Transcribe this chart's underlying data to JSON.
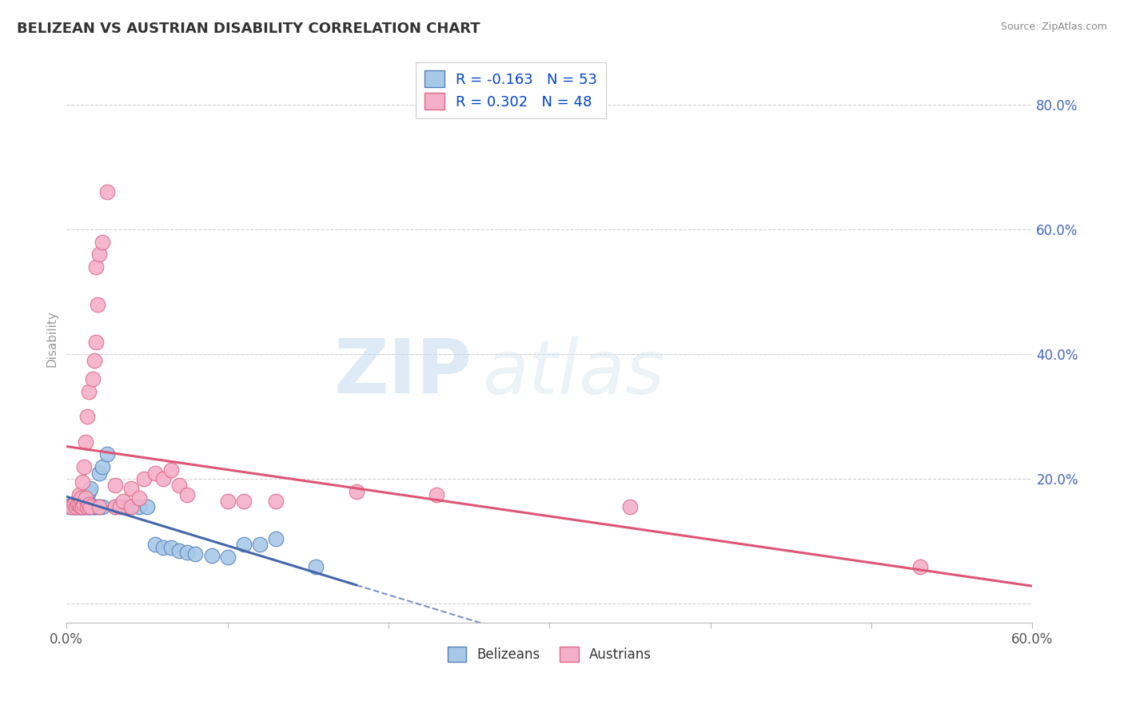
{
  "title": "BELIZEAN VS AUSTRIAN DISABILITY CORRELATION CHART",
  "source": "Source: ZipAtlas.com",
  "ylabel": "Disability",
  "watermark_zip": "ZIP",
  "watermark_atlas": "atlas",
  "blue_R": -0.163,
  "blue_N": 53,
  "pink_R": 0.302,
  "pink_N": 48,
  "blue_color": "#a8c8e8",
  "pink_color": "#f4b0c8",
  "blue_edge_color": "#5580bb",
  "pink_edge_color": "#e06888",
  "blue_line_color": "#4466aa",
  "pink_line_color": "#dd5577",
  "legend_label_blue": "Belizeans",
  "legend_label_pink": "Austrians",
  "blue_scatter": [
    [
      0.002,
      0.155
    ],
    [
      0.003,
      0.158
    ],
    [
      0.004,
      0.155
    ],
    [
      0.004,
      0.16
    ],
    [
      0.005,
      0.155
    ],
    [
      0.005,
      0.16
    ],
    [
      0.006,
      0.155
    ],
    [
      0.006,
      0.162
    ],
    [
      0.007,
      0.155
    ],
    [
      0.007,
      0.16
    ],
    [
      0.008,
      0.155
    ],
    [
      0.008,
      0.16
    ],
    [
      0.008,
      0.165
    ],
    [
      0.009,
      0.155
    ],
    [
      0.009,
      0.163
    ],
    [
      0.01,
      0.155
    ],
    [
      0.01,
      0.16
    ],
    [
      0.01,
      0.168
    ],
    [
      0.011,
      0.155
    ],
    [
      0.011,
      0.162
    ],
    [
      0.012,
      0.155
    ],
    [
      0.012,
      0.175
    ],
    [
      0.013,
      0.155
    ],
    [
      0.013,
      0.172
    ],
    [
      0.014,
      0.155
    ],
    [
      0.014,
      0.18
    ],
    [
      0.015,
      0.155
    ],
    [
      0.015,
      0.185
    ],
    [
      0.016,
      0.155
    ],
    [
      0.017,
      0.155
    ],
    [
      0.018,
      0.155
    ],
    [
      0.02,
      0.155
    ],
    [
      0.02,
      0.21
    ],
    [
      0.022,
      0.155
    ],
    [
      0.022,
      0.22
    ],
    [
      0.025,
      0.24
    ],
    [
      0.03,
      0.155
    ],
    [
      0.035,
      0.155
    ],
    [
      0.04,
      0.155
    ],
    [
      0.045,
      0.155
    ],
    [
      0.05,
      0.155
    ],
    [
      0.055,
      0.095
    ],
    [
      0.06,
      0.09
    ],
    [
      0.065,
      0.09
    ],
    [
      0.07,
      0.085
    ],
    [
      0.075,
      0.082
    ],
    [
      0.08,
      0.08
    ],
    [
      0.09,
      0.078
    ],
    [
      0.1,
      0.075
    ],
    [
      0.11,
      0.095
    ],
    [
      0.12,
      0.095
    ],
    [
      0.13,
      0.105
    ],
    [
      0.155,
      0.06
    ]
  ],
  "pink_scatter": [
    [
      0.003,
      0.155
    ],
    [
      0.005,
      0.16
    ],
    [
      0.006,
      0.155
    ],
    [
      0.007,
      0.16
    ],
    [
      0.008,
      0.16
    ],
    [
      0.008,
      0.175
    ],
    [
      0.009,
      0.155
    ],
    [
      0.009,
      0.17
    ],
    [
      0.01,
      0.155
    ],
    [
      0.01,
      0.195
    ],
    [
      0.011,
      0.16
    ],
    [
      0.011,
      0.22
    ],
    [
      0.012,
      0.17
    ],
    [
      0.012,
      0.26
    ],
    [
      0.013,
      0.155
    ],
    [
      0.013,
      0.3
    ],
    [
      0.014,
      0.16
    ],
    [
      0.014,
      0.34
    ],
    [
      0.015,
      0.155
    ],
    [
      0.016,
      0.36
    ],
    [
      0.017,
      0.39
    ],
    [
      0.018,
      0.42
    ],
    [
      0.018,
      0.54
    ],
    [
      0.019,
      0.48
    ],
    [
      0.02,
      0.155
    ],
    [
      0.02,
      0.56
    ],
    [
      0.022,
      0.58
    ],
    [
      0.025,
      0.66
    ],
    [
      0.03,
      0.155
    ],
    [
      0.03,
      0.19
    ],
    [
      0.033,
      0.155
    ],
    [
      0.035,
      0.165
    ],
    [
      0.04,
      0.155
    ],
    [
      0.04,
      0.185
    ],
    [
      0.045,
      0.17
    ],
    [
      0.048,
      0.2
    ],
    [
      0.055,
      0.21
    ],
    [
      0.06,
      0.2
    ],
    [
      0.065,
      0.215
    ],
    [
      0.07,
      0.19
    ],
    [
      0.075,
      0.175
    ],
    [
      0.1,
      0.165
    ],
    [
      0.11,
      0.165
    ],
    [
      0.13,
      0.165
    ],
    [
      0.18,
      0.18
    ],
    [
      0.23,
      0.175
    ],
    [
      0.35,
      0.155
    ],
    [
      0.53,
      0.06
    ]
  ],
  "x_min": 0.0,
  "x_max": 0.6,
  "y_min": -0.03,
  "y_max": 0.88,
  "yticks": [
    0.0,
    0.2,
    0.4,
    0.6,
    0.8
  ],
  "ytick_labels": [
    "",
    "20.0%",
    "40.0%",
    "60.0%",
    "80.0%"
  ],
  "xtick_labels": [
    "0.0%",
    "",
    "",
    "",
    "",
    "",
    "60.0%"
  ],
  "background_color": "#ffffff",
  "grid_color": "#cccccc",
  "title_color": "#333333",
  "source_color": "#888888",
  "yaxis_color": "#4466bb"
}
